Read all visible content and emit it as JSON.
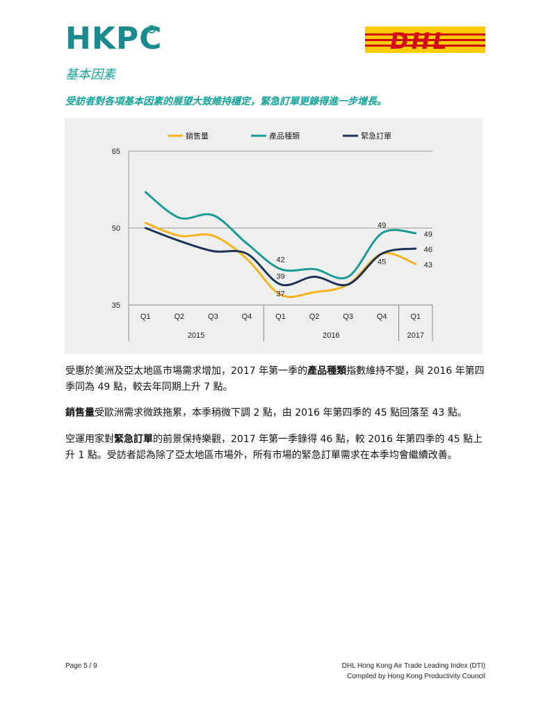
{
  "header": {
    "logo_text": "HKPC",
    "partner_logo_text": "DHL",
    "section_title": "基本因素",
    "subtitle": "受訪者對各項基本因素的展望大致維持穩定，緊急訂單更錄得進一步增長。"
  },
  "colors": {
    "teal": "#12a39a",
    "sales": "#f5b41c",
    "variety": "#1a9c95",
    "urgent": "#1c3257"
  },
  "chart_data": {
    "type": "line",
    "categories": [
      "Q1",
      "Q2",
      "Q3",
      "Q4",
      "Q1",
      "Q2",
      "Q3",
      "Q4",
      "Q1"
    ],
    "year_labels": [
      "2015",
      "2016",
      "2017"
    ],
    "ylim": [
      35,
      65
    ],
    "yticks": [
      "65",
      "50",
      "35"
    ],
    "grid": "horizontal",
    "legend_position": "top",
    "series": [
      {
        "name": "銷售量",
        "color": "#f5b41c",
        "values": [
          51,
          48.5,
          48.5,
          44,
          37,
          37.5,
          39,
          45,
          43
        ]
      },
      {
        "name": "產品種類",
        "color": "#1a9c95",
        "values": [
          57,
          52,
          52.5,
          47,
          42,
          42,
          40.5,
          49,
          49
        ]
      },
      {
        "name": "緊急訂單",
        "color": "#1c3257",
        "values": [
          50,
          47.5,
          45.5,
          45,
          39,
          40.5,
          39,
          45,
          46
        ]
      }
    ],
    "annotations": [
      {
        "text": "42",
        "series": 1,
        "index": 4
      },
      {
        "text": "39",
        "series": 2,
        "index": 4
      },
      {
        "text": "37",
        "series": 0,
        "index": 4
      },
      {
        "text": "49",
        "series": 1,
        "index": 7
      },
      {
        "text": "45",
        "series": 2,
        "index": 7
      },
      {
        "text": "49",
        "series": 1,
        "index": 8
      },
      {
        "text": "46",
        "series": 2,
        "index": 8
      },
      {
        "text": "43",
        "series": 0,
        "index": 8
      }
    ]
  },
  "body": {
    "p1_a": "受惠於美洲及亞太地區市場需求增加，2017 年第一季的",
    "p1_b": "產品種類",
    "p1_c": "指數維持不變，與 2016 年第四季同為 49 點，較去年同期上升 7 點。",
    "p2_a": "銷售量",
    "p2_b": "受歐洲需求微跌拖累，本季稍微下調 2 點，由 2016 年第四季的 45 點回落至 43 點。",
    "p3_a": "空運用家對",
    "p3_b": "緊急訂單",
    "p3_c": "的前景保持樂觀，2017 年第一季錄得 46 點，較 2016 年第四季的 45 點上升 1 點。受訪者認為除了亞太地區市場外，所有市場的緊急訂單需求在本季均會繼續改善。"
  },
  "footer": {
    "page": "Page 5 / 9",
    "line1": "DHL Hong Kong Air Trade Leading Index (DTI)",
    "line2": "Compiled by Hong Kong Productivity Council"
  }
}
